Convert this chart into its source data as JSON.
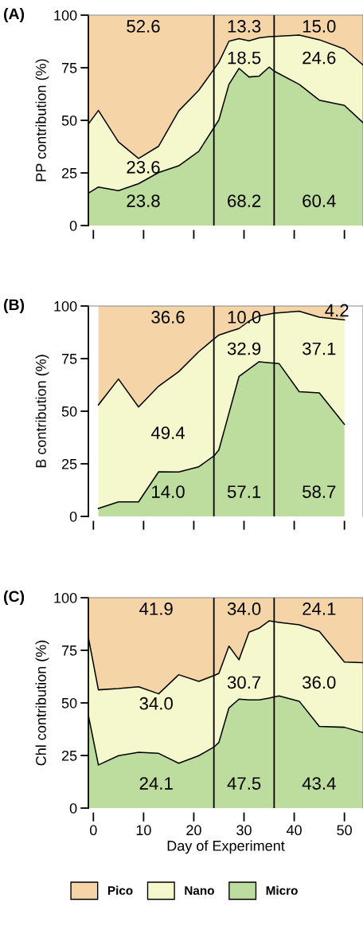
{
  "chart_data": [
    {
      "type": "area",
      "stacked": true,
      "title": "(A)",
      "ylabel": "PP contribution (%)",
      "xlim": [
        -1,
        53.7
      ],
      "ylim": [
        0,
        100
      ],
      "xticks": [
        0,
        10,
        20,
        30,
        40,
        50
      ],
      "yticks": [
        0,
        25,
        50,
        75,
        100
      ],
      "tick_labels": "y",
      "grid": false,
      "x": [
        -1,
        1,
        5,
        9,
        13,
        17,
        21,
        25,
        27,
        29,
        31,
        33,
        35,
        36,
        41,
        45,
        50,
        53.7
      ],
      "series": [
        {
          "color": "#bcdd9d",
          "values": [
            15.4,
            18.3,
            16.6,
            19.9,
            25.2,
            28.4,
            35.3,
            50.2,
            67.1,
            74.7,
            70.6,
            71.0,
            75.3,
            73.4,
            67.1,
            59.6,
            57.1,
            48.9
          ]
        },
        {
          "color": "#f4f8cc",
          "values": [
            32.8,
            36.4,
            23.1,
            12.0,
            12.5,
            26.1,
            29.0,
            27.4,
            20.5,
            14.1,
            17.2,
            18.2,
            14.5,
            16.5,
            23.4,
            28.7,
            26.8,
            27.4
          ]
        },
        {
          "color": "#f5d5a8",
          "values": [
            51.8,
            45.3,
            60.3,
            68.1,
            62.3,
            45.5,
            35.7,
            22.4,
            12.4,
            11.2,
            12.2,
            10.8,
            10.2,
            10.1,
            9.5,
            11.7,
            16.1,
            23.7
          ]
        }
      ],
      "ref_lines": [
        {
          "axis": "x",
          "value": 24,
          "color": "#000000"
        },
        {
          "axis": "x",
          "value": 36,
          "color": "#000000"
        }
      ],
      "annotations": [
        "52.6",
        "13.3",
        "15.0",
        "18.5",
        "24.6",
        "23.6",
        "23.8",
        "68.2",
        "60.4"
      ]
    },
    {
      "type": "area",
      "stacked": true,
      "title": "(B)",
      "ylabel": "B contribution (%)",
      "xlim": [
        -1,
        53.7
      ],
      "ylim": [
        0,
        100
      ],
      "xticks": [
        0,
        10,
        20,
        30,
        40,
        50
      ],
      "yticks": [
        0,
        25,
        50,
        75,
        100
      ],
      "tick_labels": "y",
      "grid": false,
      "x": [
        1,
        5,
        9,
        13,
        17,
        21,
        24,
        25,
        27,
        29,
        31,
        33,
        36,
        37,
        41,
        45,
        50
      ],
      "series": [
        {
          "color": "#bcdd9d",
          "values": [
            3.8,
            6.9,
            6.9,
            21.2,
            21.1,
            23.6,
            28.7,
            31.6,
            49.0,
            66.5,
            70.0,
            73.5,
            72.8,
            72.6,
            59.3,
            58.7,
            43.8
          ]
        },
        {
          "color": "#f4f8cc",
          "values": [
            49.2,
            58.4,
            45.1,
            40.7,
            47.7,
            54.7,
            55.6,
            54.6,
            38.8,
            22.8,
            22.8,
            21.8,
            23.8,
            24.2,
            38.2,
            36.0,
            49.6
          ]
        },
        {
          "color": "#f5d5a8",
          "values": [
            47.0,
            34.7,
            48.0,
            38.1,
            31.2,
            21.7,
            15.7,
            13.8,
            12.2,
            10.7,
            7.2,
            4.7,
            3.4,
            3.2,
            2.5,
            5.3,
            6.6
          ]
        }
      ],
      "ref_lines": [
        {
          "axis": "x",
          "value": 24,
          "color": "#000000"
        },
        {
          "axis": "x",
          "value": 36,
          "color": "#000000"
        }
      ],
      "annotations": [
        "36.6",
        "10.0",
        "4.2",
        "32.9",
        "37.1",
        "49.4",
        "14.0",
        "57.1",
        "58.7"
      ]
    },
    {
      "type": "area",
      "stacked": true,
      "title": "(C)",
      "ylabel": "Chl contribution (%)",
      "xlabel": "Day of Experiment",
      "xlim": [
        -1,
        53.7
      ],
      "ylim": [
        0,
        100
      ],
      "xticks": [
        0,
        10,
        20,
        30,
        40,
        50
      ],
      "yticks": [
        0,
        25,
        50,
        75,
        100
      ],
      "legend": "bottom",
      "grid": false,
      "x": [
        -1,
        1,
        5,
        9,
        13,
        17,
        21,
        24,
        25,
        27,
        29,
        31,
        33,
        35,
        36,
        37,
        41,
        45,
        50,
        53.7
      ],
      "series": [
        {
          "name": "Micro",
          "color": "#bcdd9d",
          "values": [
            44.1,
            20.5,
            24.9,
            26.5,
            26.0,
            21.3,
            24.9,
            29.0,
            31.2,
            47.6,
            51.8,
            51.4,
            51.4,
            52.3,
            52.8,
            53.3,
            50.8,
            38.8,
            38.4,
            35.9
          ]
        },
        {
          "name": "Nano",
          "color": "#f4f8cc",
          "values": [
            37.0,
            35.7,
            31.9,
            31.2,
            28.3,
            42.1,
            35.3,
            34.0,
            32.8,
            29.4,
            18.7,
            32.2,
            34.1,
            36.7,
            35.8,
            35.0,
            36.3,
            45.2,
            31.0,
            33.2
          ]
        },
        {
          "name": "Pico",
          "color": "#f5d5a8",
          "values": [
            18.9,
            43.8,
            43.2,
            42.3,
            45.7,
            36.6,
            39.8,
            37.0,
            36.0,
            23.0,
            29.5,
            16.4,
            14.5,
            11.0,
            11.4,
            11.7,
            12.9,
            16.0,
            30.6,
            30.9
          ]
        }
      ],
      "ref_lines": [
        {
          "axis": "x",
          "value": 24,
          "color": "#000000"
        },
        {
          "axis": "x",
          "value": 36,
          "color": "#000000"
        }
      ],
      "annotations": [
        "41.9",
        "34.0",
        "24.1",
        "30.7",
        "36.0",
        "34.0",
        "24.1",
        "47.5",
        "43.4"
      ]
    }
  ]
}
